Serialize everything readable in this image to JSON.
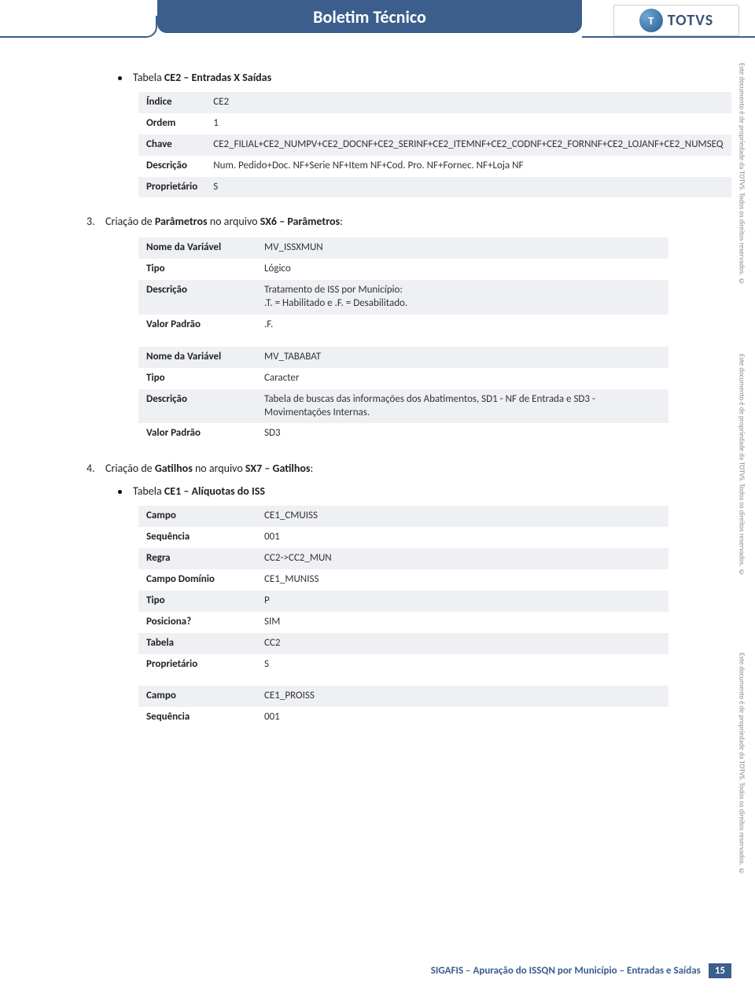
{
  "header": {
    "title": "Boletim Técnico",
    "logo_letter": "T",
    "logo_text": "TOTVS"
  },
  "colors": {
    "header_bg": "#3b5e8c",
    "row_odd": "#eef0f3",
    "row_even": "#ffffff",
    "footer_accent": "#3b5e8c"
  },
  "section1": {
    "bullet_prefix": "Tabela ",
    "bullet_bold": "CE2 – Entradas X Saídas",
    "rows": [
      {
        "k": "Índice",
        "v": "CE2"
      },
      {
        "k": "Ordem",
        "v": "1"
      },
      {
        "k": "Chave",
        "v": "CE2_FILIAL+CE2_NUMPV+CE2_DOCNF+CE2_SERINF+CE2_ITEMNF+CE2_CODNF+CE2_FORNNF+CE2_LOJANF+CE2_NUMSEQ"
      },
      {
        "k": "Descrição",
        "v": "Num. Pedido+Doc. NF+Serie NF+Item NF+Cod. Pro. NF+Fornec. NF+Loja NF"
      },
      {
        "k": "Proprietário",
        "v": "S"
      }
    ]
  },
  "section2": {
    "num": "3.",
    "text_pre": "Criação de ",
    "text_b1": "Parâmetros",
    "text_mid": " no arquivo ",
    "text_b2": "SX6 – Parâmetros",
    "text_end": ":",
    "t1": [
      {
        "k": "Nome da Variável",
        "v": "MV_ISSXMUN"
      },
      {
        "k": "Tipo",
        "v": "Lógico"
      },
      {
        "k": "Descrição",
        "v": "Tratamento de ISS por Município:\n.T. = Habilitado e .F. = Desabilitado."
      },
      {
        "k": "Valor Padrão",
        "v": ".F."
      }
    ],
    "t2": [
      {
        "k": "Nome da Variável",
        "v": "MV_TABABAT"
      },
      {
        "k": "Tipo",
        "v": "Caracter"
      },
      {
        "k": "Descrição",
        "v": "Tabela de buscas das informações dos Abatimentos, SD1 - NF de Entrada e SD3 - Movimentações Internas."
      },
      {
        "k": "Valor Padrão",
        "v": "SD3"
      }
    ]
  },
  "section3": {
    "num": "4.",
    "text_pre": "Criação de ",
    "text_b1": "Gatilhos",
    "text_mid": " no arquivo ",
    "text_b2": "SX7 – Gatilhos",
    "text_end": ":",
    "bullet_prefix": "Tabela ",
    "bullet_bold": "CE1 – Alíquotas do ISS",
    "t1": [
      {
        "k": "Campo",
        "v": "CE1_CMUISS"
      },
      {
        "k": "Sequência",
        "v": "001"
      },
      {
        "k": "Regra",
        "v": "CC2->CC2_MUN"
      },
      {
        "k": "Campo Domínio",
        "v": "CE1_MUNISS"
      },
      {
        "k": "Tipo",
        "v": "P"
      },
      {
        "k": "Posiciona?",
        "v": "SIM"
      },
      {
        "k": "Tabela",
        "v": "CC2"
      },
      {
        "k": "Proprietário",
        "v": "S"
      }
    ],
    "t2": [
      {
        "k": "Campo",
        "v": "CE1_PROISS"
      },
      {
        "k": "Sequência",
        "v": "001"
      }
    ]
  },
  "sidebar_note": "Este documento é de propriedade da TOTVS. Todos os direitos reservados. ©",
  "footer": {
    "text": "SIGAFIS – Apuração do ISSQN por Município – Entradas e Saídas",
    "page": "15"
  }
}
